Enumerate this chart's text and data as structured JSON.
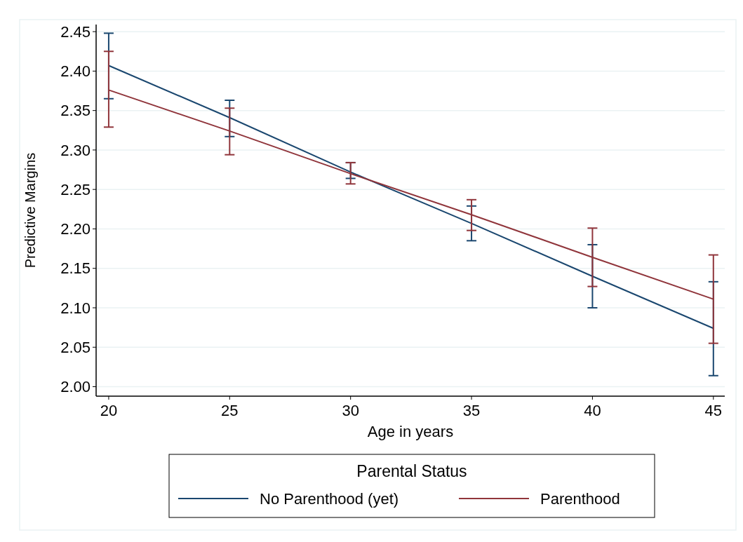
{
  "chart_data": {
    "type": "line",
    "xlabel": "Age in years",
    "ylabel": "Predictive Margins",
    "legend_title": "Parental Status",
    "x": [
      20,
      25,
      30,
      35,
      40,
      45
    ],
    "series": [
      {
        "name": "No Parenthood (yet)",
        "color": "#1a476f",
        "values": [
          2.407,
          2.341,
          2.272,
          2.207,
          2.14,
          2.074
        ],
        "errors": [
          [
            2.365,
            2.448
          ],
          [
            2.317,
            2.363
          ],
          [
            2.264,
            2.284
          ],
          [
            2.185,
            2.229
          ],
          [
            2.1,
            2.18
          ],
          [
            2.014,
            2.133
          ]
        ]
      },
      {
        "name": "Parenthood",
        "color": "#90353b",
        "values": [
          2.376,
          2.324,
          2.27,
          2.218,
          2.164,
          2.111
        ],
        "errors": [
          [
            2.329,
            2.425
          ],
          [
            2.294,
            2.353
          ],
          [
            2.257,
            2.284
          ],
          [
            2.198,
            2.237
          ],
          [
            2.127,
            2.201
          ],
          [
            2.055,
            2.167
          ]
        ]
      }
    ],
    "xlim": [
      19.48,
      45.47
    ],
    "ylim": [
      1.988,
      2.459
    ],
    "xticks": [
      20,
      25,
      30,
      35,
      40,
      45
    ],
    "yticks": [
      {
        "value": 2,
        "label": "2.00"
      },
      {
        "value": 2.05,
        "label": "2.05"
      },
      {
        "value": 2.1,
        "label": "2.10"
      },
      {
        "value": 2.15,
        "label": "2.15"
      },
      {
        "value": 2.2,
        "label": "2.20"
      },
      {
        "value": 2.25,
        "label": "2.25"
      },
      {
        "value": 2.3,
        "label": "2.30"
      },
      {
        "value": 2.35,
        "label": "2.35"
      },
      {
        "value": 2.4,
        "label": "2.40"
      },
      {
        "value": 2.45,
        "label": "2.45"
      }
    ],
    "grid": "y",
    "legend": "bottom",
    "marker": "none",
    "line_style": "solid"
  }
}
